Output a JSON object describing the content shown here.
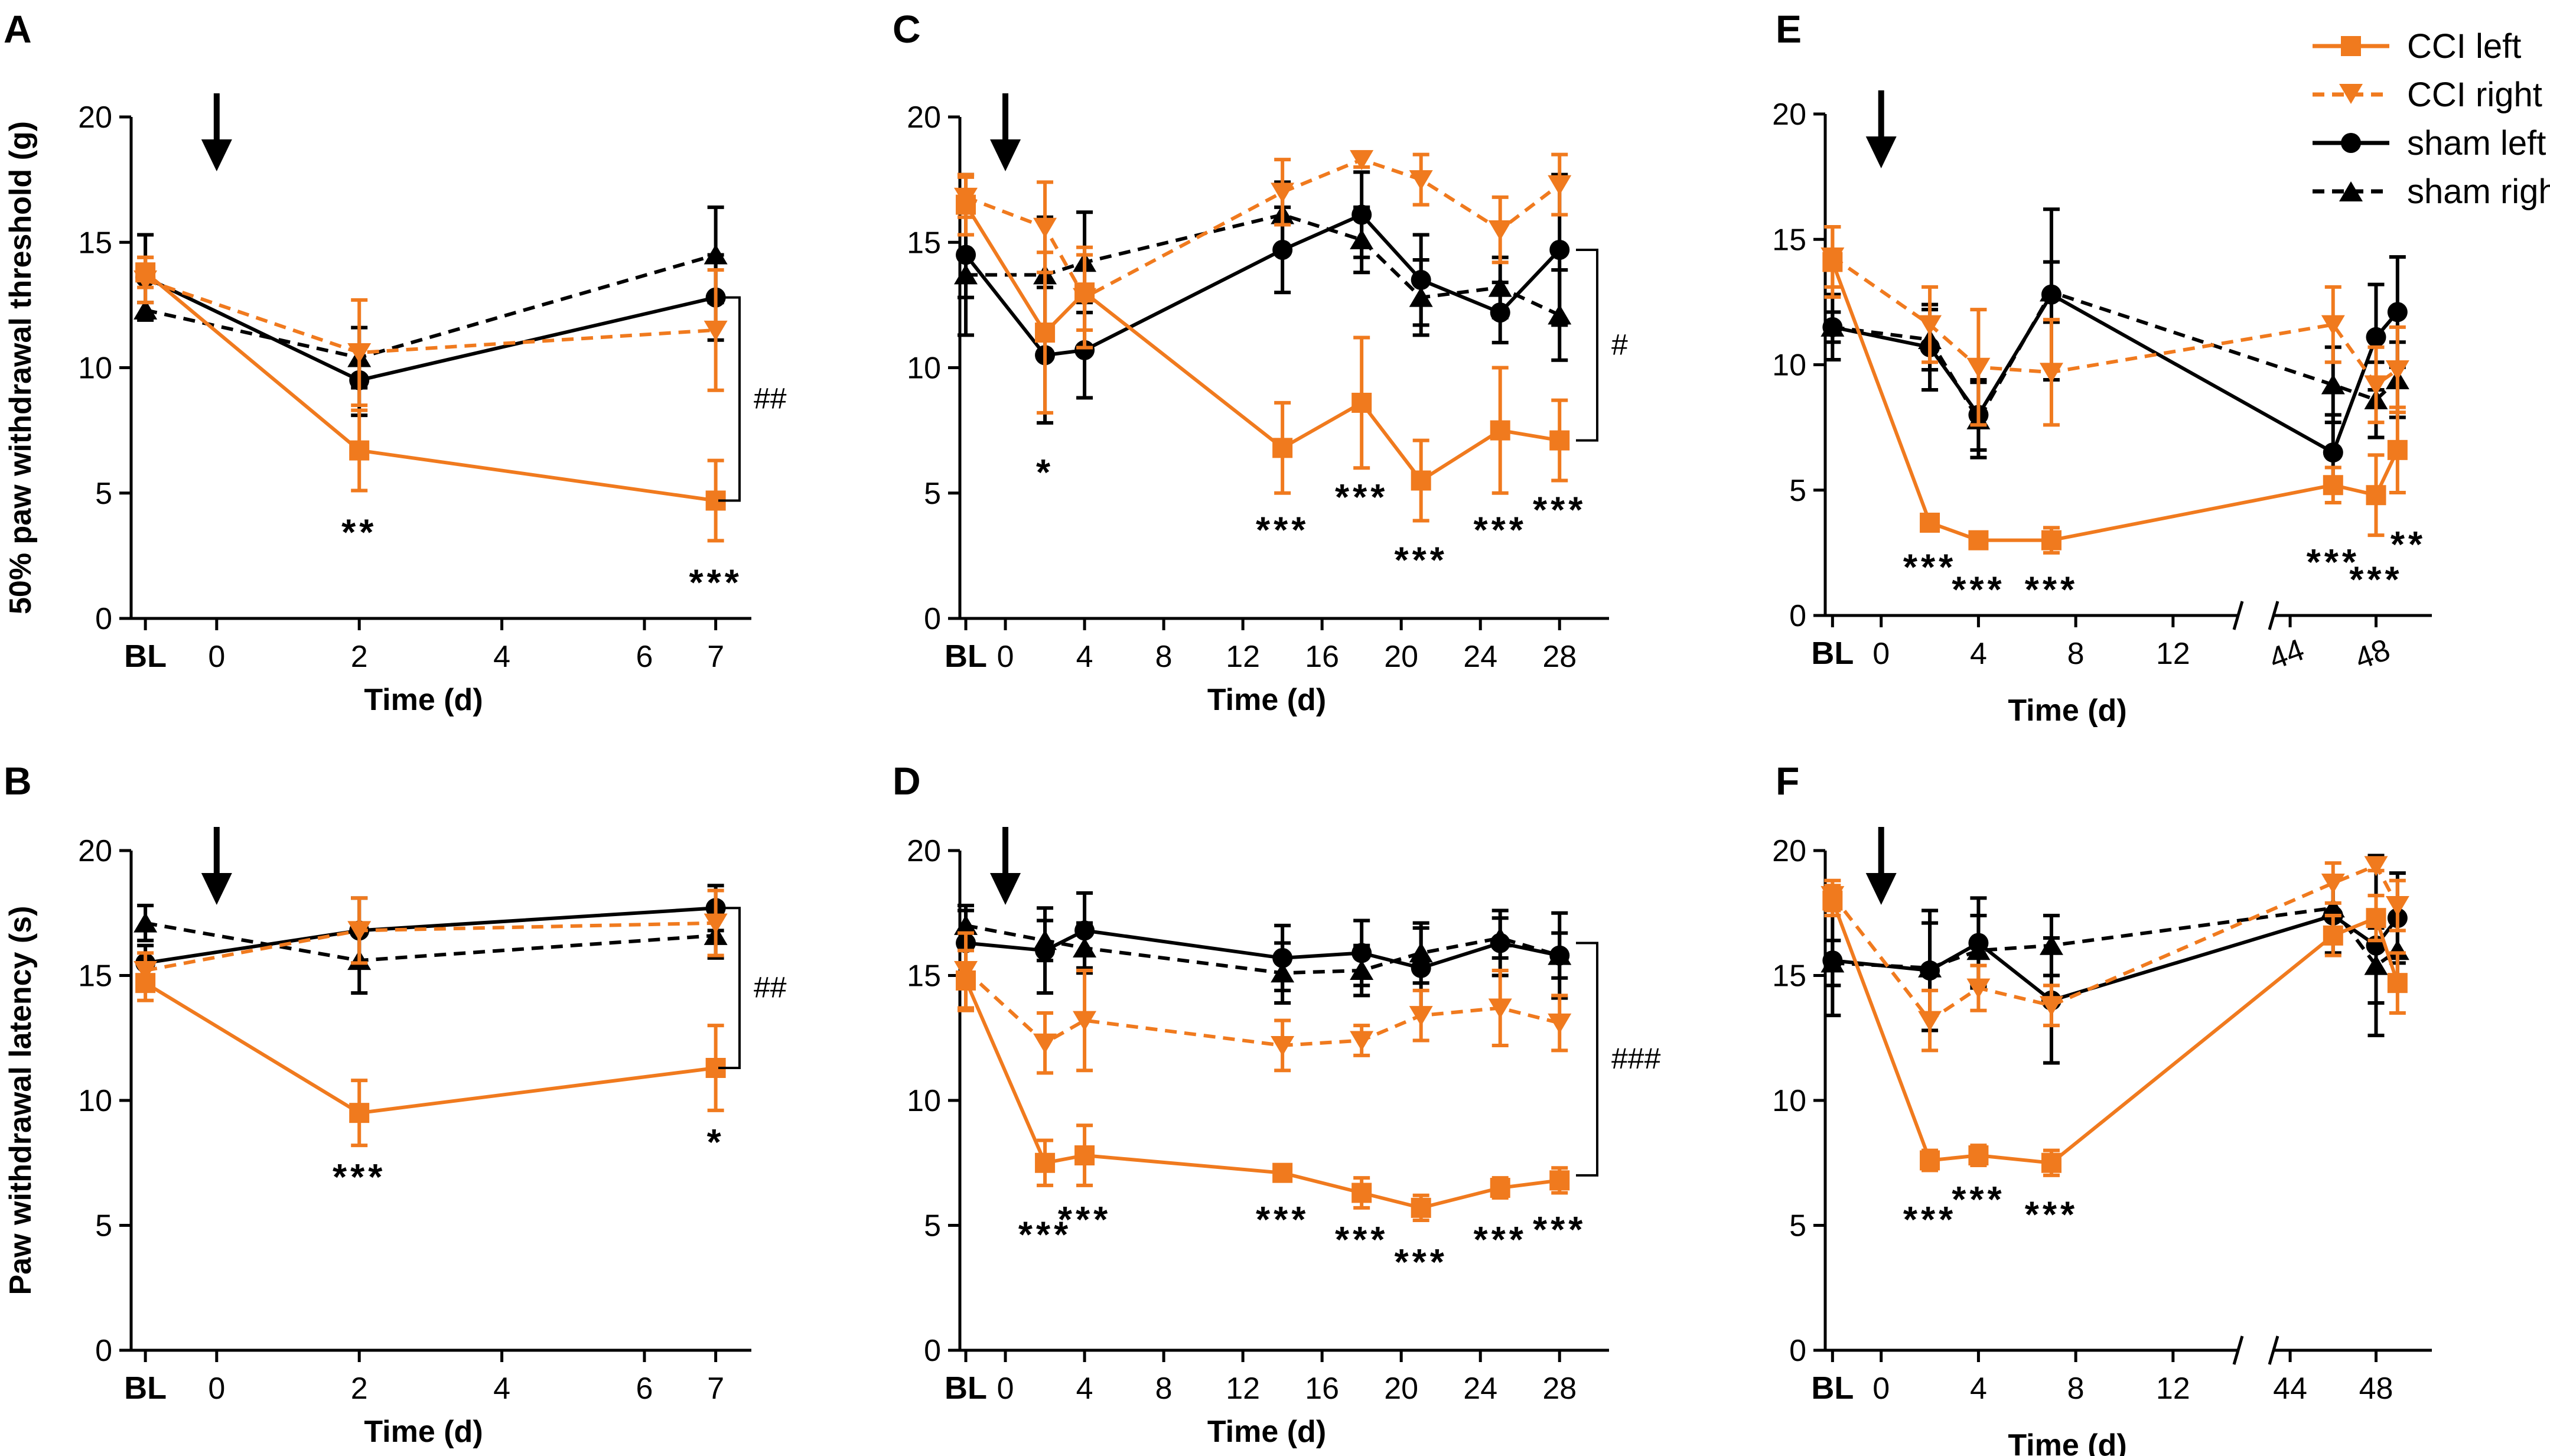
{
  "colors": {
    "cci": "#F07A1E",
    "sham": "#000000"
  },
  "legend": [
    {
      "label": "CCI left",
      "color": "#F07A1E",
      "dash": false,
      "marker": "square"
    },
    {
      "label": "CCI right",
      "color": "#F07A1E",
      "dash": true,
      "marker": "triangle-down"
    },
    {
      "label": "sham left",
      "color": "#000000",
      "dash": false,
      "marker": "circle"
    },
    {
      "label": "sham right",
      "color": "#000000",
      "dash": true,
      "marker": "triangle-up"
    }
  ],
  "chart_data": [
    {
      "panel": "A",
      "type": "line",
      "ylabel": "50% paw withdrawal threshold (g)",
      "xlabel": "Time (d)",
      "ylim": [
        0,
        20
      ],
      "yticks": [
        0,
        5,
        10,
        15,
        20
      ],
      "xlim": [
        -1.2,
        7.5
      ],
      "xticks": [
        {
          "x": -1,
          "label": "BL"
        },
        {
          "x": 0,
          "label": "0"
        },
        {
          "x": 2,
          "label": "2"
        },
        {
          "x": 4,
          "label": "4"
        },
        {
          "x": 6,
          "label": "6"
        },
        {
          "x": 7,
          "label": "7"
        }
      ],
      "arrow_x": 0,
      "series": [
        {
          "name": "CCI left",
          "x": [
            -1,
            2,
            7
          ],
          "y": [
            13.8,
            6.7,
            4.7
          ],
          "err": [
            0.6,
            1.6,
            1.6
          ]
        },
        {
          "name": "CCI right",
          "x": [
            -1,
            2,
            7
          ],
          "y": [
            13.5,
            10.6,
            11.5
          ],
          "err": [
            0.9,
            2.1,
            2.4
          ]
        },
        {
          "name": "sham left",
          "x": [
            -1,
            2,
            7
          ],
          "y": [
            13.6,
            9.5,
            12.8
          ],
          "err": [
            1.7,
            1.4,
            1.7
          ]
        },
        {
          "name": "sham right",
          "x": [
            -1,
            2,
            7
          ],
          "y": [
            12.3,
            10.4,
            14.5
          ],
          "err": [
            0.3,
            1.2,
            1.9
          ]
        }
      ],
      "annotations": [
        {
          "x": 2,
          "y": 3.4,
          "text": "**"
        },
        {
          "x": 7,
          "y": 1.4,
          "text": "***"
        }
      ],
      "bracket": {
        "y_top": 12.8,
        "y_bottom": 4.7,
        "text": "##"
      }
    },
    {
      "panel": "B",
      "type": "line",
      "ylabel": "Paw withdrawal latency (s)",
      "xlabel": "Time (d)",
      "ylim": [
        0,
        20
      ],
      "yticks": [
        0,
        5,
        10,
        15,
        20
      ],
      "xlim": [
        -1.2,
        7.5
      ],
      "xticks": [
        {
          "x": -1,
          "label": "BL"
        },
        {
          "x": 0,
          "label": "0"
        },
        {
          "x": 2,
          "label": "2"
        },
        {
          "x": 4,
          "label": "4"
        },
        {
          "x": 6,
          "label": "6"
        },
        {
          "x": 7,
          "label": "7"
        }
      ],
      "arrow_x": 0,
      "series": [
        {
          "name": "CCI left",
          "x": [
            -1,
            2,
            7
          ],
          "y": [
            14.7,
            9.5,
            11.3
          ],
          "err": [
            0.7,
            1.3,
            1.7
          ]
        },
        {
          "name": "CCI right",
          "x": [
            -1,
            2,
            7
          ],
          "y": [
            15.2,
            16.8,
            17.1
          ],
          "err": [
            0.7,
            1.3,
            1.3
          ]
        },
        {
          "name": "sham left",
          "x": [
            -1,
            2,
            7
          ],
          "y": [
            15.5,
            16.8,
            17.7
          ],
          "err": [
            0.7,
            1.3,
            0.9
          ]
        },
        {
          "name": "sham right",
          "x": [
            -1,
            2,
            7
          ],
          "y": [
            17.1,
            15.6,
            16.6
          ],
          "err": [
            0.7,
            1.3,
            0.9
          ]
        }
      ],
      "annotations": [
        {
          "x": 2,
          "y": 6.9,
          "text": "***"
        },
        {
          "x": 7,
          "y": 8.3,
          "text": "*"
        }
      ],
      "bracket": {
        "y_top": 17.7,
        "y_bottom": 11.3,
        "text": "##"
      }
    },
    {
      "panel": "C",
      "type": "line",
      "ylabel": "",
      "xlabel": "Time (d)",
      "ylim": [
        0,
        20
      ],
      "yticks": [
        0,
        5,
        10,
        15,
        20
      ],
      "xlim": [
        -2.3,
        30.5
      ],
      "xticks": [
        {
          "x": -2,
          "label": "BL"
        },
        {
          "x": 0,
          "label": "0"
        },
        {
          "x": 4,
          "label": "4"
        },
        {
          "x": 8,
          "label": "8"
        },
        {
          "x": 12,
          "label": "12"
        },
        {
          "x": 16,
          "label": "16"
        },
        {
          "x": 20,
          "label": "20"
        },
        {
          "x": 24,
          "label": "24"
        },
        {
          "x": 28,
          "label": "28"
        }
      ],
      "arrow_x": 0,
      "series": [
        {
          "name": "CCI left",
          "x": [
            -2,
            2,
            4,
            14,
            18,
            21,
            25,
            28
          ],
          "y": [
            16.5,
            11.4,
            13.0,
            6.8,
            8.6,
            5.5,
            7.5,
            7.1
          ],
          "err": [
            1.2,
            3.2,
            1.5,
            1.8,
            2.6,
            1.6,
            2.5,
            1.6
          ]
        },
        {
          "name": "CCI right",
          "x": [
            -2,
            2,
            4,
            14,
            18,
            21,
            25,
            28
          ],
          "y": [
            16.8,
            15.6,
            12.8,
            17.0,
            18.3,
            17.5,
            15.5,
            17.3
          ],
          "err": [
            0.8,
            1.8,
            2.0,
            1.3,
            0.3,
            1.0,
            1.3,
            1.2
          ]
        },
        {
          "name": "sham left",
          "x": [
            -2,
            2,
            4,
            14,
            18,
            21,
            25,
            28
          ],
          "y": [
            14.5,
            10.5,
            10.7,
            14.7,
            16.1,
            13.5,
            12.2,
            14.7
          ],
          "err": [
            3.2,
            2.7,
            1.9,
            1.7,
            1.7,
            1.8,
            1.2,
            3.0
          ]
        },
        {
          "name": "sham right",
          "x": [
            -2,
            2,
            4,
            14,
            18,
            21,
            25,
            28
          ],
          "y": [
            13.7,
            13.7,
            14.2,
            16.1,
            15.1,
            12.8,
            13.2,
            12.1
          ],
          "err": [
            0.9,
            2.3,
            2.0,
            1.3,
            1.3,
            1.5,
            1.2,
            1.8
          ]
        }
      ],
      "annotations": [
        {
          "x": 2,
          "y": 5.8,
          "text": "*"
        },
        {
          "x": 14,
          "y": 3.5,
          "text": "***"
        },
        {
          "x": 18,
          "y": 4.8,
          "text": "***"
        },
        {
          "x": 21,
          "y": 2.3,
          "text": "***"
        },
        {
          "x": 25,
          "y": 3.5,
          "text": "***"
        },
        {
          "x": 28,
          "y": 4.3,
          "text": "***"
        }
      ],
      "bracket": {
        "y_top": 14.7,
        "y_bottom": 7.1,
        "text": "#"
      }
    },
    {
      "panel": "D",
      "type": "line",
      "ylabel": "",
      "xlabel": "Time (d)",
      "ylim": [
        0,
        20
      ],
      "yticks": [
        0,
        5,
        10,
        15,
        20
      ],
      "xlim": [
        -2.3,
        30.5
      ],
      "xticks": [
        {
          "x": -2,
          "label": "BL"
        },
        {
          "x": 0,
          "label": "0"
        },
        {
          "x": 4,
          "label": "4"
        },
        {
          "x": 8,
          "label": "8"
        },
        {
          "x": 12,
          "label": "12"
        },
        {
          "x": 16,
          "label": "16"
        },
        {
          "x": 20,
          "label": "20"
        },
        {
          "x": 24,
          "label": "24"
        },
        {
          "x": 28,
          "label": "28"
        }
      ],
      "arrow_x": 0,
      "series": [
        {
          "name": "CCI left",
          "x": [
            -2,
            2,
            4,
            14,
            18,
            21,
            25,
            28
          ],
          "y": [
            14.8,
            7.5,
            7.8,
            7.1,
            6.3,
            5.7,
            6.5,
            6.8
          ],
          "err": [
            1.2,
            0.9,
            1.2,
            0.2,
            0.6,
            0.5,
            0.4,
            0.5
          ]
        },
        {
          "name": "CCI right",
          "x": [
            -2,
            2,
            4,
            14,
            18,
            21,
            25,
            28
          ],
          "y": [
            15.2,
            12.3,
            13.2,
            12.2,
            12.4,
            13.4,
            13.7,
            13.1
          ],
          "err": [
            1.5,
            1.2,
            2.0,
            1.0,
            0.6,
            1.0,
            1.5,
            1.1
          ]
        },
        {
          "name": "sham left",
          "x": [
            -2,
            2,
            4,
            14,
            18,
            21,
            25,
            28
          ],
          "y": [
            16.3,
            16.0,
            16.8,
            15.7,
            15.9,
            15.3,
            16.3,
            15.8
          ],
          "err": [
            1.3,
            1.7,
            1.5,
            1.3,
            1.3,
            1.6,
            1.3,
            1.7
          ]
        },
        {
          "name": "sham right",
          "x": [
            -2,
            2,
            4,
            14,
            18,
            21,
            25,
            28
          ],
          "y": [
            17.0,
            16.4,
            16.1,
            15.1,
            15.2,
            15.9,
            16.5,
            15.8
          ],
          "err": [
            0.8,
            0.8,
            1.0,
            1.2,
            1.0,
            1.2,
            0.8,
            0.9
          ]
        }
      ],
      "annotations": [
        {
          "x": 2,
          "y": 4.6,
          "text": "***"
        },
        {
          "x": 4,
          "y": 5.2,
          "text": "***"
        },
        {
          "x": 14,
          "y": 5.2,
          "text": "***"
        },
        {
          "x": 18,
          "y": 4.4,
          "text": "***"
        },
        {
          "x": 21,
          "y": 3.5,
          "text": "***"
        },
        {
          "x": 25,
          "y": 4.4,
          "text": "***"
        },
        {
          "x": 28,
          "y": 4.8,
          "text": "***"
        }
      ],
      "bracket": {
        "y_top": 16.3,
        "y_bottom": 7.0,
        "text": "###"
      }
    },
    {
      "panel": "E",
      "type": "line",
      "ylabel": "",
      "xlabel": "Time (d)",
      "ylim": [
        0,
        20
      ],
      "yticks": [
        0,
        5,
        10,
        15,
        20
      ],
      "xlim": [
        -2.3,
        14.7
      ],
      "x2lim": [
        43.2,
        50.6
      ],
      "xticks": [
        {
          "x": -2,
          "label": "BL"
        },
        {
          "x": 0,
          "label": "0"
        },
        {
          "x": 4,
          "label": "4"
        },
        {
          "x": 8,
          "label": "8"
        },
        {
          "x": 12,
          "label": "12"
        }
      ],
      "x2ticks": [
        {
          "x": 44,
          "label": "44"
        },
        {
          "x": 48,
          "label": "48"
        }
      ],
      "x2label_rotate": true,
      "arrow_x": 0,
      "series": [
        {
          "name": "CCI left",
          "x": [
            -2,
            2,
            4,
            7,
            46,
            48,
            49
          ],
          "y": [
            14.1,
            3.7,
            3.0,
            3.0,
            5.2,
            4.8,
            6.6
          ],
          "err": [
            1.4,
            0.3,
            0.3,
            0.5,
            0.7,
            1.6,
            1.7
          ]
        },
        {
          "name": "CCI right",
          "x": [
            -2,
            2,
            4,
            7,
            46,
            48,
            49
          ],
          "y": [
            14.3,
            11.6,
            9.9,
            9.7,
            11.6,
            9.2,
            9.8
          ],
          "err": [
            1.2,
            1.5,
            2.3,
            2.1,
            1.5,
            1.5,
            1.7
          ]
        },
        {
          "name": "sham left",
          "x": [
            -2,
            2,
            4,
            7,
            46,
            48,
            49
          ],
          "y": [
            11.5,
            10.7,
            8.0,
            12.8,
            6.5,
            11.1,
            12.1
          ],
          "err": [
            1.3,
            1.7,
            1.4,
            3.4,
            1.5,
            2.1,
            2.2
          ]
        },
        {
          "name": "sham right",
          "x": [
            -2,
            2,
            4,
            7,
            46,
            48,
            49
          ],
          "y": [
            11.5,
            11.0,
            7.8,
            12.9,
            9.2,
            8.6,
            9.4
          ],
          "err": [
            0.6,
            1.2,
            1.5,
            1.2,
            1.5,
            1.5,
            1.5
          ]
        }
      ],
      "annotations": [
        {
          "x": 2,
          "y": 1.9,
          "text": "***"
        },
        {
          "x": 4,
          "y": 1.0,
          "text": "***"
        },
        {
          "x": 7,
          "y": 1.0,
          "text": "***"
        },
        {
          "x": 46,
          "y": 2.1,
          "text": "***"
        },
        {
          "x": 48,
          "y": 1.4,
          "text": "***"
        },
        {
          "x": 49.5,
          "y": 2.8,
          "text": "**"
        }
      ]
    },
    {
      "panel": "F",
      "type": "line",
      "ylabel": "",
      "xlabel": "Time (d)",
      "ylim": [
        0,
        20
      ],
      "yticks": [
        0,
        5,
        10,
        15,
        20
      ],
      "xlim": [
        -2.3,
        14.7
      ],
      "x2lim": [
        43.2,
        50.6
      ],
      "xticks": [
        {
          "x": -2,
          "label": "BL"
        },
        {
          "x": 0,
          "label": "0"
        },
        {
          "x": 4,
          "label": "4"
        },
        {
          "x": 8,
          "label": "8"
        },
        {
          "x": 12,
          "label": "12"
        }
      ],
      "x2ticks": [
        {
          "x": 44,
          "label": "44"
        },
        {
          "x": 48,
          "label": "48"
        }
      ],
      "x2label_rotate": false,
      "arrow_x": 0,
      "series": [
        {
          "name": "CCI left",
          "x": [
            -2,
            2,
            4,
            7,
            46,
            48,
            49
          ],
          "y": [
            18.0,
            7.6,
            7.8,
            7.5,
            16.6,
            17.3,
            14.7
          ],
          "err": [
            0.6,
            0.4,
            0.4,
            0.5,
            0.8,
            0.9,
            1.2
          ]
        },
        {
          "name": "CCI right",
          "x": [
            -2,
            2,
            4,
            7,
            46,
            48,
            49
          ],
          "y": [
            18.2,
            13.2,
            14.5,
            13.8,
            18.7,
            19.4,
            17.8
          ],
          "err": [
            0.6,
            1.2,
            0.9,
            0.8,
            0.8,
            0.2,
            1.0
          ]
        },
        {
          "name": "sham left",
          "x": [
            -2,
            2,
            4,
            7,
            46,
            48,
            49
          ],
          "y": [
            15.6,
            15.2,
            16.3,
            14.0,
            17.4,
            16.2,
            17.3
          ],
          "err": [
            2.2,
            2.4,
            1.8,
            2.5,
            1.5,
            3.6,
            1.8
          ]
        },
        {
          "name": "sham right",
          "x": [
            -2,
            2,
            4,
            7,
            46,
            48,
            49
          ],
          "y": [
            15.5,
            15.3,
            16.0,
            16.2,
            17.7,
            15.4,
            16.0
          ],
          "err": [
            0.9,
            1.8,
            1.4,
            1.2,
            1.2,
            1.5,
            1.2
          ]
        }
      ],
      "annotations": [
        {
          "x": 2,
          "y": 5.2,
          "text": "***"
        },
        {
          "x": 4,
          "y": 6.0,
          "text": "***"
        },
        {
          "x": 7,
          "y": 5.4,
          "text": "***"
        }
      ]
    }
  ]
}
